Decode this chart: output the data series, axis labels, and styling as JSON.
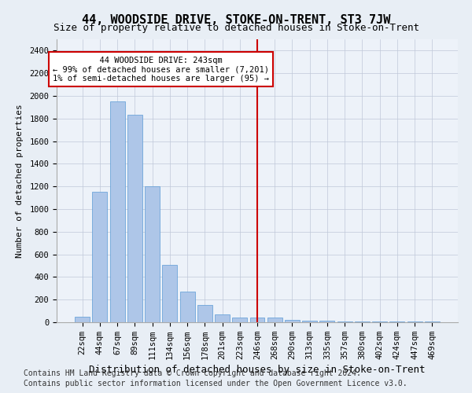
{
  "title": "44, WOODSIDE DRIVE, STOKE-ON-TRENT, ST3 7JW",
  "subtitle": "Size of property relative to detached houses in Stoke-on-Trent",
  "xlabel": "Distribution of detached houses by size in Stoke-on-Trent",
  "ylabel": "Number of detached properties",
  "categories": [
    "22sqm",
    "44sqm",
    "67sqm",
    "89sqm",
    "111sqm",
    "134sqm",
    "156sqm",
    "178sqm",
    "201sqm",
    "223sqm",
    "246sqm",
    "268sqm",
    "290sqm",
    "313sqm",
    "335sqm",
    "357sqm",
    "380sqm",
    "402sqm",
    "424sqm",
    "447sqm",
    "469sqm"
  ],
  "values": [
    50,
    1150,
    1950,
    1830,
    1200,
    510,
    270,
    150,
    70,
    40,
    40,
    40,
    20,
    15,
    15,
    10,
    5,
    5,
    5,
    5,
    5
  ],
  "bar_color": "#aec6e8",
  "bar_edge_color": "#5b9bd5",
  "vline_x": 10.0,
  "vline_color": "#cc0000",
  "annotation_text": "  44 WOODSIDE DRIVE: 243sqm  \n← 99% of detached houses are smaller (7,201)\n1% of semi-detached houses are larger (95) →",
  "annotation_box_color": "#ffffff",
  "annotation_box_edge": "#cc0000",
  "ylim": [
    0,
    2500
  ],
  "yticks": [
    0,
    200,
    400,
    600,
    800,
    1000,
    1200,
    1400,
    1600,
    1800,
    2000,
    2200,
    2400
  ],
  "footer1": "Contains HM Land Registry data © Crown copyright and database right 2024.",
  "footer2": "Contains public sector information licensed under the Open Government Licence v3.0.",
  "bg_color": "#e8eef5",
  "plot_bg_color": "#edf2f9",
  "title_fontsize": 11,
  "subtitle_fontsize": 9,
  "xlabel_fontsize": 9,
  "ylabel_fontsize": 8,
  "tick_fontsize": 7.5,
  "annotation_fontsize": 7.5,
  "footer_fontsize": 7
}
